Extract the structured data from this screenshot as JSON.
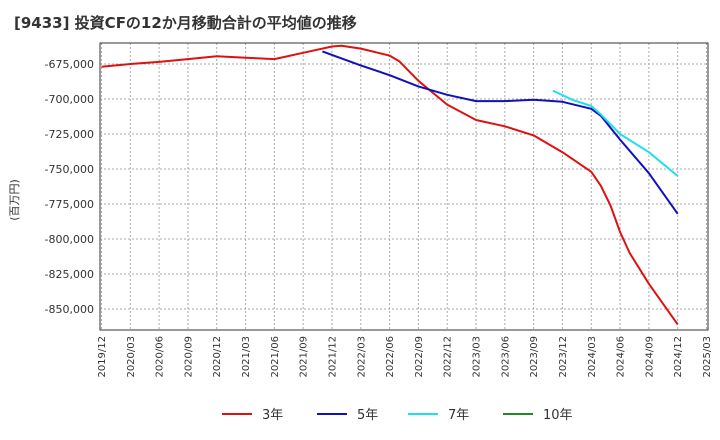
{
  "chart_data": {
    "type": "line",
    "title": "[9433]  投資CFの12か月移動合計の平均値の推移",
    "ylabel": "(百万円)",
    "ylim": [
      -865000,
      -660000
    ],
    "yticks": [
      -675000,
      -700000,
      -725000,
      -750000,
      -775000,
      -800000,
      -825000,
      -850000
    ],
    "ytick_labels": [
      "-675,000",
      "-700,000",
      "-725,000",
      "-750,000",
      "-775,000",
      "-800,000",
      "-825,000",
      "-850,000"
    ],
    "xticks": [
      "2019/12",
      "2020/03",
      "2020/06",
      "2020/09",
      "2020/12",
      "2021/03",
      "2021/06",
      "2021/09",
      "2021/12",
      "2022/03",
      "2022/06",
      "2022/09",
      "2022/12",
      "2023/03",
      "2023/06",
      "2023/09",
      "2023/12",
      "2024/03",
      "2024/06",
      "2024/09",
      "2024/12",
      "2025/03"
    ],
    "grid": true,
    "legend_position": "bottom",
    "series": [
      {
        "name": "3年",
        "color": "#dd1111",
        "points": [
          [
            "2019/12",
            -677000
          ],
          [
            "2020/03",
            -675000
          ],
          [
            "2020/06",
            -673500
          ],
          [
            "2020/09",
            -671500
          ],
          [
            "2020/12",
            -669500
          ],
          [
            "2021/03",
            -670500
          ],
          [
            "2021/06",
            -671500
          ],
          [
            "2021/09",
            -667000
          ],
          [
            "2021/12",
            -662500
          ],
          [
            "2022/01",
            -662000
          ],
          [
            "2022/03",
            -664000
          ],
          [
            "2022/06",
            -669000
          ],
          [
            "2022/07",
            -673000
          ],
          [
            "2022/09",
            -687000
          ],
          [
            "2022/12",
            -704000
          ],
          [
            "2023/03",
            -715000
          ],
          [
            "2023/06",
            -719500
          ],
          [
            "2023/09",
            -726000
          ],
          [
            "2023/12",
            -738000
          ],
          [
            "2024/03",
            -752000
          ],
          [
            "2024/04",
            -762000
          ],
          [
            "2024/05",
            -776000
          ],
          [
            "2024/06",
            -795000
          ],
          [
            "2024/07",
            -810000
          ],
          [
            "2024/09",
            -832000
          ],
          [
            "2024/12",
            -861000
          ]
        ]
      },
      {
        "name": "5年",
        "color": "#1111bb",
        "points": [
          [
            "2021/11",
            -666000
          ],
          [
            "2022/03",
            -676000
          ],
          [
            "2022/06",
            -683000
          ],
          [
            "2022/09",
            -691000
          ],
          [
            "2022/12",
            -697000
          ],
          [
            "2023/03",
            -701500
          ],
          [
            "2023/06",
            -701500
          ],
          [
            "2023/09",
            -700500
          ],
          [
            "2023/12",
            -702000
          ],
          [
            "2024/03",
            -707000
          ],
          [
            "2024/04",
            -712000
          ],
          [
            "2024/06",
            -729000
          ],
          [
            "2024/09",
            -753000
          ],
          [
            "2024/12",
            -782000
          ]
        ]
      },
      {
        "name": "7年",
        "color": "#22ddee",
        "points": [
          [
            "2023/11",
            -694000
          ],
          [
            "2024/01",
            -700500
          ],
          [
            "2024/03",
            -705000
          ],
          [
            "2024/04",
            -711000
          ],
          [
            "2024/06",
            -725000
          ],
          [
            "2024/09",
            -738000
          ],
          [
            "2024/12",
            -755000
          ]
        ]
      },
      {
        "name": "10年",
        "color": "#228822",
        "points": []
      }
    ]
  }
}
